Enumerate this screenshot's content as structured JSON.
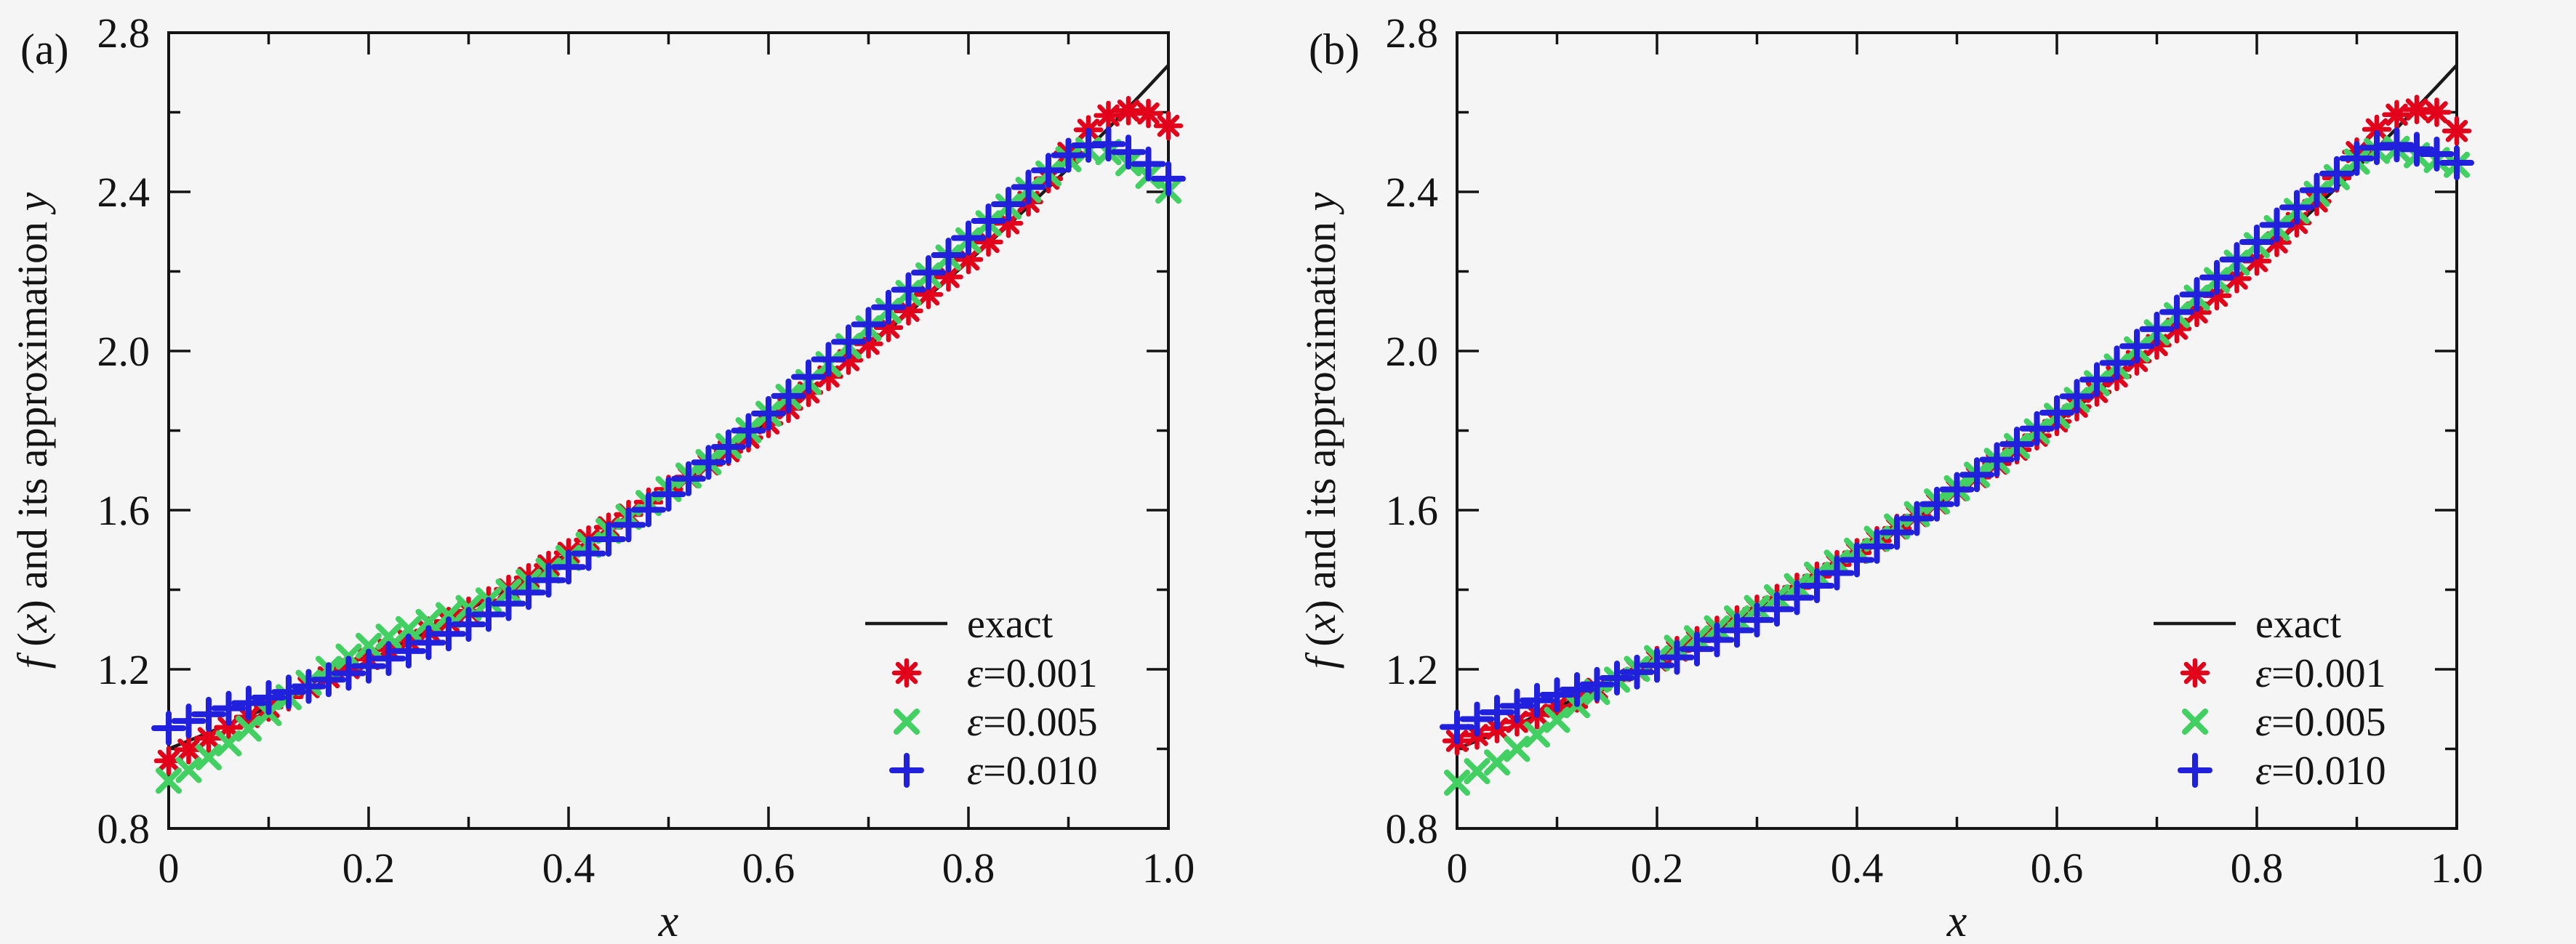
{
  "page": {
    "background": "#f5f5f5",
    "ink_color": "#141414",
    "accent_red": "#e3001b",
    "accent_green": "#41d061",
    "accent_blue": "#2020dd"
  },
  "chart_data": [
    {
      "type": "line",
      "panel_tag": "(a)",
      "title": "",
      "xlabel": "x",
      "ylabel": "f (x) and its approximation y",
      "ylabel_parts": [
        {
          "t": "f",
          "i": true
        },
        {
          "t": " (",
          "i": false
        },
        {
          "t": "x",
          "i": true
        },
        {
          "t": ") and its approximation ",
          "i": false
        },
        {
          "t": "y",
          "i": true
        }
      ],
      "xlim": [
        0,
        1
      ],
      "ylim": [
        0.8,
        2.8
      ],
      "xticks": [
        0,
        0.2,
        0.4,
        0.6,
        0.8,
        1.0
      ],
      "xtick_labels": [
        "0",
        "0.2",
        "0.4",
        "0.6",
        "0.8",
        "1.0"
      ],
      "xminorticks": [
        0.1,
        0.3,
        0.5,
        0.7,
        0.9
      ],
      "yticks": [
        0.8,
        1.2,
        1.6,
        2.0,
        2.4,
        2.8
      ],
      "ytick_labels": [
        "0.8",
        "1.2",
        "1.6",
        "2.0",
        "2.4",
        "2.8"
      ],
      "yminorticks": [
        1.0,
        1.4,
        1.8,
        2.2,
        2.6
      ],
      "grid": false,
      "legend_position": "lower-right",
      "x": [
        0,
        0.02,
        0.04,
        0.06,
        0.08,
        0.1,
        0.12,
        0.14,
        0.16,
        0.18,
        0.2,
        0.22,
        0.24,
        0.26,
        0.28,
        0.3,
        0.32,
        0.34,
        0.36,
        0.38,
        0.4,
        0.42,
        0.44,
        0.46,
        0.48,
        0.5,
        0.52,
        0.54,
        0.56,
        0.58,
        0.6,
        0.62,
        0.64,
        0.66,
        0.68,
        0.7,
        0.72,
        0.74,
        0.76,
        0.78,
        0.8,
        0.82,
        0.84,
        0.86,
        0.88,
        0.9,
        0.92,
        0.94,
        0.96,
        0.98,
        1.0
      ],
      "series": [
        {
          "name": "exact",
          "style": "line",
          "color": "#1a1a1a",
          "values": [
            1.0,
            1.0202,
            1.0408,
            1.0618,
            1.0833,
            1.1052,
            1.1275,
            1.1503,
            1.1735,
            1.1972,
            1.2214,
            1.2461,
            1.2712,
            1.2969,
            1.3231,
            1.3499,
            1.3771,
            1.4049,
            1.4333,
            1.4623,
            1.4918,
            1.522,
            1.5527,
            1.5841,
            1.6161,
            1.6487,
            1.682,
            1.716,
            1.7507,
            1.786,
            1.8221,
            1.8589,
            1.8965,
            1.9348,
            1.9739,
            2.0138,
            2.0544,
            2.0959,
            2.1383,
            2.1815,
            2.2255,
            2.2705,
            2.3164,
            2.3632,
            2.4109,
            2.4596,
            2.5093,
            2.56,
            2.6117,
            2.6645,
            2.7183
          ]
        },
        {
          "name": "ε=0.001",
          "style": "asterisk",
          "color": "#e3001b",
          "values": [
            0.97,
            0.998,
            1.027,
            1.054,
            1.08,
            1.105,
            1.131,
            1.155,
            1.18,
            1.203,
            1.226,
            1.249,
            1.272,
            1.296,
            1.32,
            1.346,
            1.372,
            1.401,
            1.43,
            1.461,
            1.493,
            1.525,
            1.557,
            1.589,
            1.62,
            1.652,
            1.683,
            1.715,
            1.748,
            1.782,
            1.818,
            1.856,
            1.896,
            1.936,
            1.977,
            2.018,
            2.059,
            2.101,
            2.142,
            2.186,
            2.23,
            2.274,
            2.321,
            2.375,
            2.433,
            2.498,
            2.556,
            2.592,
            2.604,
            2.597,
            2.566
          ]
        },
        {
          "name": "ε=0.005",
          "style": "xcross",
          "color": "#41d061",
          "values": [
            0.92,
            0.947,
            0.979,
            1.014,
            1.051,
            1.09,
            1.13,
            1.166,
            1.201,
            1.232,
            1.259,
            1.282,
            1.301,
            1.319,
            1.336,
            1.354,
            1.373,
            1.395,
            1.42,
            1.448,
            1.48,
            1.513,
            1.548,
            1.583,
            1.618,
            1.653,
            1.687,
            1.721,
            1.761,
            1.801,
            1.842,
            1.885,
            1.922,
            1.967,
            2.012,
            2.057,
            2.101,
            2.146,
            2.19,
            2.235,
            2.278,
            2.321,
            2.363,
            2.405,
            2.446,
            2.482,
            2.505,
            2.5,
            2.472,
            2.44,
            2.403
          ]
        },
        {
          "name": "ε=0.010",
          "style": "plus",
          "color": "#2020dd",
          "values": [
            1.052,
            1.07,
            1.087,
            1.102,
            1.115,
            1.129,
            1.143,
            1.157,
            1.174,
            1.19,
            1.208,
            1.227,
            1.246,
            1.267,
            1.289,
            1.313,
            1.338,
            1.365,
            1.393,
            1.424,
            1.457,
            1.491,
            1.527,
            1.563,
            1.601,
            1.64,
            1.679,
            1.72,
            1.759,
            1.8,
            1.843,
            1.887,
            1.935,
            1.979,
            2.023,
            2.067,
            2.11,
            2.154,
            2.197,
            2.241,
            2.284,
            2.327,
            2.369,
            2.412,
            2.454,
            2.492,
            2.517,
            2.52,
            2.5,
            2.47,
            2.433
          ]
        }
      ]
    },
    {
      "type": "line",
      "panel_tag": "(b)",
      "title": "",
      "xlabel": "x",
      "ylabel": "f (x) and its approximation y",
      "ylabel_parts": [
        {
          "t": "f",
          "i": true
        },
        {
          "t": " (",
          "i": false
        },
        {
          "t": "x",
          "i": true
        },
        {
          "t": ") and its approximation ",
          "i": false
        },
        {
          "t": "y",
          "i": true
        }
      ],
      "xlim": [
        0,
        1
      ],
      "ylim": [
        0.8,
        2.8
      ],
      "xticks": [
        0,
        0.2,
        0.4,
        0.6,
        0.8,
        1.0
      ],
      "xtick_labels": [
        "0",
        "0.2",
        "0.4",
        "0.6",
        "0.8",
        "1.0"
      ],
      "xminorticks": [
        0.1,
        0.3,
        0.5,
        0.7,
        0.9
      ],
      "yticks": [
        0.8,
        1.2,
        1.6,
        2.0,
        2.4,
        2.8
      ],
      "ytick_labels": [
        "0.8",
        "1.2",
        "1.6",
        "2.0",
        "2.4",
        "2.8"
      ],
      "yminorticks": [
        1.0,
        1.4,
        1.8,
        2.2,
        2.6
      ],
      "grid": false,
      "legend_position": "lower-right",
      "x": [
        0,
        0.02,
        0.04,
        0.06,
        0.08,
        0.1,
        0.12,
        0.14,
        0.16,
        0.18,
        0.2,
        0.22,
        0.24,
        0.26,
        0.28,
        0.3,
        0.32,
        0.34,
        0.36,
        0.38,
        0.4,
        0.42,
        0.44,
        0.46,
        0.48,
        0.5,
        0.52,
        0.54,
        0.56,
        0.58,
        0.6,
        0.62,
        0.64,
        0.66,
        0.68,
        0.7,
        0.72,
        0.74,
        0.76,
        0.78,
        0.8,
        0.82,
        0.84,
        0.86,
        0.88,
        0.9,
        0.92,
        0.94,
        0.96,
        0.98,
        1.0
      ],
      "series": [
        {
          "name": "exact",
          "style": "line",
          "color": "#1a1a1a",
          "values": [
            1.0,
            1.0202,
            1.0408,
            1.0618,
            1.0833,
            1.1052,
            1.1275,
            1.1503,
            1.1735,
            1.1972,
            1.2214,
            1.2461,
            1.2712,
            1.2969,
            1.3231,
            1.3499,
            1.3771,
            1.4049,
            1.4333,
            1.4623,
            1.4918,
            1.522,
            1.5527,
            1.5841,
            1.6161,
            1.6487,
            1.682,
            1.716,
            1.7507,
            1.786,
            1.8221,
            1.8589,
            1.8965,
            1.9348,
            1.9739,
            2.0138,
            2.0544,
            2.0959,
            2.1383,
            2.1815,
            2.2255,
            2.2705,
            2.3164,
            2.3632,
            2.4109,
            2.4596,
            2.5093,
            2.56,
            2.6117,
            2.6645,
            2.7183
          ]
        },
        {
          "name": "ε=0.001",
          "style": "asterisk",
          "color": "#e3001b",
          "values": [
            1.02,
            1.035,
            1.051,
            1.068,
            1.086,
            1.106,
            1.128,
            1.151,
            1.174,
            1.198,
            1.222,
            1.247,
            1.272,
            1.298,
            1.324,
            1.351,
            1.378,
            1.406,
            1.434,
            1.463,
            1.493,
            1.523,
            1.554,
            1.585,
            1.617,
            1.65,
            1.683,
            1.717,
            1.752,
            1.787,
            1.823,
            1.86,
            1.897,
            1.936,
            1.975,
            2.015,
            2.056,
            2.097,
            2.139,
            2.182,
            2.226,
            2.273,
            2.322,
            2.376,
            2.435,
            2.5,
            2.557,
            2.594,
            2.607,
            2.6,
            2.553
          ]
        },
        {
          "name": "ε=0.005",
          "style": "xcross",
          "color": "#41d061",
          "values": [
            0.915,
            0.944,
            0.966,
            1.0,
            1.036,
            1.073,
            1.11,
            1.143,
            1.174,
            1.201,
            1.228,
            1.254,
            1.278,
            1.303,
            1.328,
            1.354,
            1.381,
            1.409,
            1.438,
            1.468,
            1.498,
            1.528,
            1.559,
            1.59,
            1.622,
            1.655,
            1.689,
            1.724,
            1.761,
            1.798,
            1.837,
            1.877,
            1.919,
            1.961,
            2.004,
            2.047,
            2.09,
            2.134,
            2.178,
            2.222,
            2.266,
            2.309,
            2.352,
            2.395,
            2.437,
            2.476,
            2.503,
            2.508,
            2.492,
            2.48,
            2.468
          ]
        },
        {
          "name": "ε=0.010",
          "style": "plus",
          "color": "#2020dd",
          "values": [
            1.055,
            1.075,
            1.092,
            1.108,
            1.122,
            1.136,
            1.149,
            1.162,
            1.178,
            1.193,
            1.21,
            1.23,
            1.251,
            1.274,
            1.298,
            1.324,
            1.351,
            1.38,
            1.41,
            1.442,
            1.475,
            1.509,
            1.544,
            1.579,
            1.615,
            1.652,
            1.689,
            1.727,
            1.766,
            1.805,
            1.845,
            1.886,
            1.928,
            1.97,
            2.012,
            2.055,
            2.098,
            2.142,
            2.185,
            2.23,
            2.274,
            2.317,
            2.361,
            2.404,
            2.446,
            2.484,
            2.511,
            2.518,
            2.507,
            2.495,
            2.473
          ]
        }
      ]
    }
  ]
}
